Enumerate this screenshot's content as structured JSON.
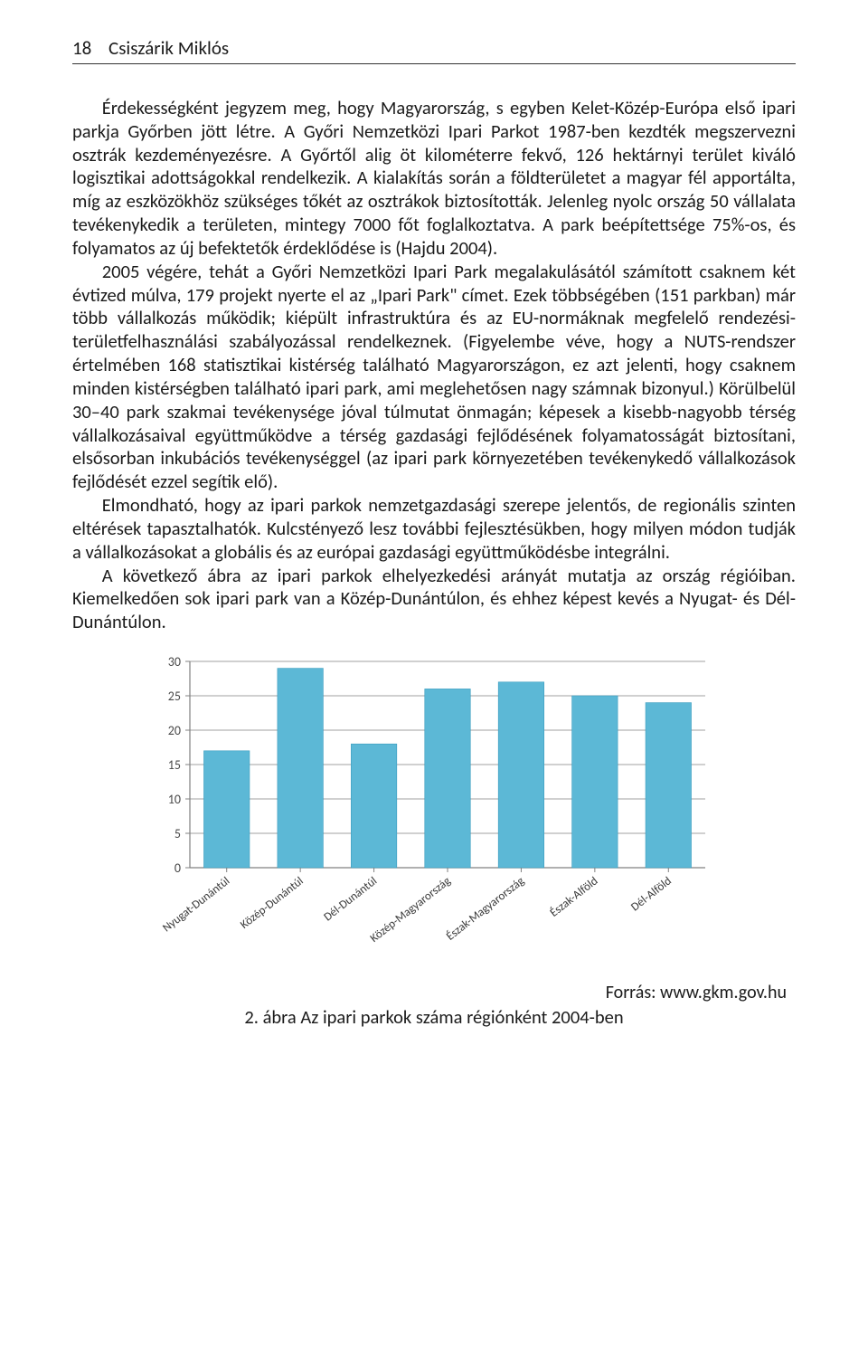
{
  "header": {
    "page_number": "18",
    "running_head": "Csiszárik Miklós"
  },
  "paragraphs": {
    "p1": "Érdekességként jegyzem meg, hogy Magyarország, s egyben Kelet-Közép-Európa első ipari parkja Győrben jött létre. A Győri Nemzetközi Ipari Parkot 1987-ben kezdték megszervezni osztrák kezdeményezésre. A Győrtől alig öt kilométerre fekvő, 126 hektárnyi terület kiváló logisztikai adottságokkal rendelkezik. A kialakítás során a földterületet a magyar fél apportálta, míg az eszközökhöz szükséges tőkét az osztrákok biztosították. Jelenleg nyolc ország 50 vállalata tevékenykedik a területen, mintegy 7000 főt foglalkoztatva. A park beépítettsége 75%-os, és folyamatos az új befektetők érdeklődése is (Hajdu 2004).",
    "p2": "2005 végére, tehát a Győri Nemzetközi Ipari Park megalakulásától számított csaknem két évtized múlva, 179 projekt nyerte el az „Ipari Park\" címet. Ezek többségében (151 parkban) már több vállalkozás működik; kiépült infrastruktúra és az EU-normáknak megfelelő rendezési-területfelhasználási szabályozással rendelkeznek. (Figyelembe véve, hogy a NUTS-rendszer értelmében 168 statisztikai kistérség található Magyarországon, ez azt jelenti, hogy csaknem minden kistérségben található ipari park, ami meglehetősen nagy számnak bizonyul.) Körülbelül 30–40 park szakmai tevékenysége jóval túlmutat önmagán; képesek a kisebb-nagyobb térség vállalkozásaival együttműködve a térség gazdasági fejlődésének folyamatosságát biztosítani, elsősorban inkubációs tevékenységgel (az ipari park környezetében tevékenykedő vállalkozások fejlődését ezzel segítik elő).",
    "p3": "Elmondható, hogy az ipari parkok nemzetgazdasági szerepe jelentős, de regionális szinten eltérések tapasztalhatók. Kulcstényező lesz további fejlesztésükben, hogy milyen módon tudják a vállalkozásokat a globális és az európai gazdasági együttműködésbe integrálni.",
    "p4": "A következő ábra az ipari parkok elhelyezkedési arányát mutatja az ország régióiban. Kiemelkedően sok ipari park van a Közép-Dunántúlon, és ehhez képest kevés a Nyugat- és Dél-Dunántúlon."
  },
  "chart": {
    "type": "bar",
    "categories": [
      "Nyugat-Dunántúl",
      "Közép-Dunántúl",
      "Dél-Dunántúl",
      "Közép-Magyarország",
      "Észak-Magyarország",
      "Észak-Alföld",
      "Dél-Alföld"
    ],
    "values": [
      17,
      29,
      18,
      26,
      27,
      25,
      24
    ],
    "ylim": [
      0,
      30
    ],
    "ytick_step": 5,
    "yticks": [
      0,
      5,
      10,
      15,
      20,
      25,
      30
    ],
    "bar_color": "#5cb8d6",
    "bar_border": "#3a9cbf",
    "axis_color": "#808080",
    "grid_color": "#808080",
    "tick_label_color": "#4a4a4a",
    "xlabel_color": "#3a3a3a",
    "background_color": "#ffffff",
    "tick_fontsize": 14,
    "xlabel_fontsize": 13,
    "bar_width_ratio": 0.62,
    "xlabel_rotation": -38
  },
  "source": "Forrás: www.gkm.gov.hu",
  "caption": "2. ábra Az ipari parkok száma régiónként 2004-ben"
}
